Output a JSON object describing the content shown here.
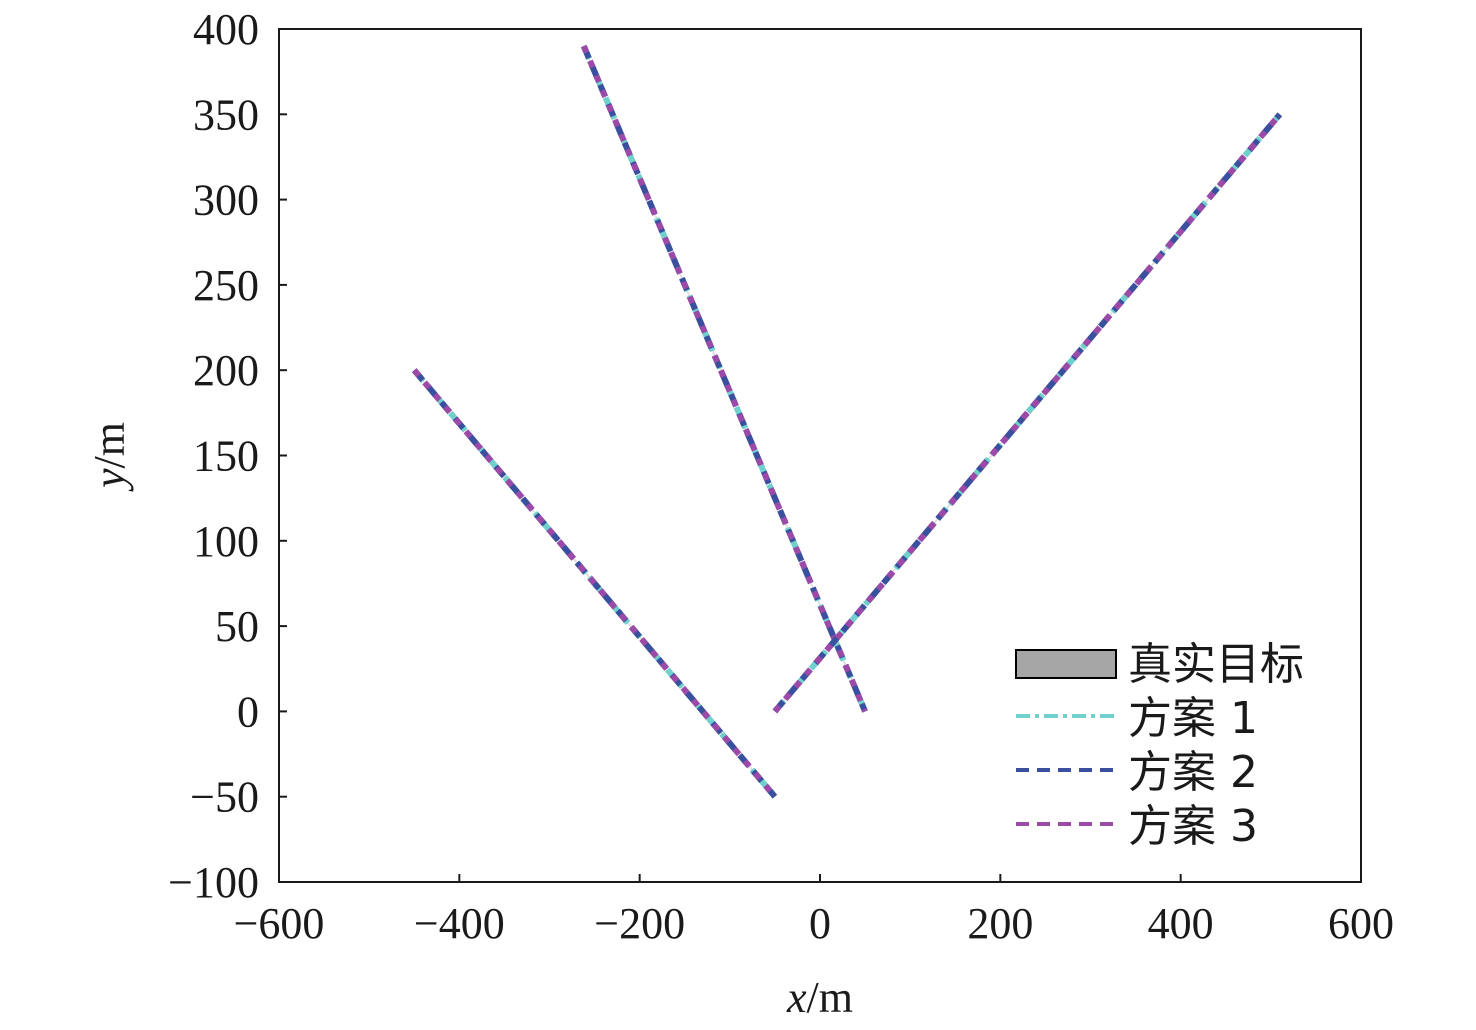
{
  "chart_data": {
    "type": "line",
    "title": "",
    "xlabel": {
      "var": "x",
      "unit": "/m"
    },
    "ylabel": {
      "var": "y",
      "unit": "/m"
    },
    "xlim": [
      -600,
      600
    ],
    "ylim": [
      -100,
      400
    ],
    "xticks": [
      -600,
      -400,
      -200,
      0,
      200,
      400,
      600
    ],
    "yticks": [
      -100,
      -50,
      0,
      50,
      100,
      150,
      200,
      250,
      300,
      350,
      400
    ],
    "xtick_labels": [
      "−600",
      "−400",
      "−200",
      "0",
      "200",
      "400",
      "600"
    ],
    "ytick_labels": [
      "−100",
      "−50",
      "0",
      "50",
      "100",
      "150",
      "200",
      "250",
      "300",
      "350",
      "400"
    ],
    "grid": false,
    "legend_position": "bottom-right",
    "targets": [
      {
        "start": [
          -450,
          200
        ],
        "end": [
          -50,
          -50
        ]
      },
      {
        "start": [
          -262,
          390
        ],
        "end": [
          50,
          0
        ]
      },
      {
        "start": [
          -50,
          0
        ],
        "end": [
          510,
          350
        ]
      }
    ],
    "series": [
      {
        "name": "真实目标",
        "color": "#a6a6a6",
        "style": "solid-band"
      },
      {
        "name": "方案 1",
        "color": "#6fd0cc",
        "style": "dash-dot"
      },
      {
        "name": "方案 2",
        "color": "#3a4f9e",
        "style": "dashed"
      },
      {
        "name": "方案 3",
        "color": "#9b4aa8",
        "style": "dashed"
      }
    ]
  }
}
